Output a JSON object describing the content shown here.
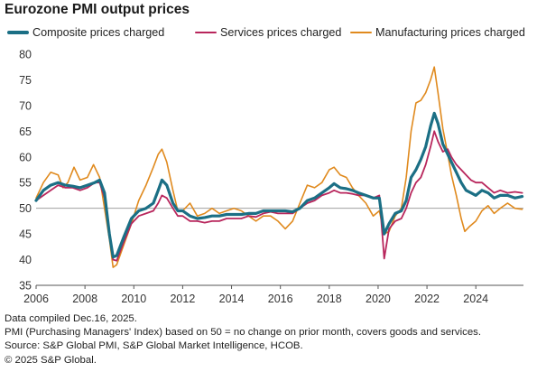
{
  "title": "Eurozone PMI output prices",
  "notes": [
    "Data compiled Dec.16, 2025.",
    "PMI (Purchasing Managers' Index) based on 50 = no change on prior month, covers goods and services.",
    "Source: S&P Global PMI, S&P Global Market Intelligence, HCOB.",
    "© 2025 S&P Global."
  ],
  "chart_data": {
    "type": "line",
    "title": "Eurozone PMI output prices",
    "xlabel": "",
    "ylabel": "",
    "ylim": [
      35,
      80
    ],
    "xlim": [
      2006,
      2025.95
    ],
    "yticks": [
      35,
      40,
      45,
      50,
      55,
      60,
      65,
      70,
      75,
      80
    ],
    "xticks": [
      2006,
      2008,
      2010,
      2012,
      2014,
      2016,
      2018,
      2020,
      2022,
      2024
    ],
    "reference_line": 50,
    "grid": false,
    "legend_position": "top",
    "series": [
      {
        "name": "Composite prices charged",
        "color": "#1b6f85",
        "points": [
          [
            2006.0,
            51.5
          ],
          [
            2006.3,
            53.5
          ],
          [
            2006.6,
            54.5
          ],
          [
            2006.9,
            55.0
          ],
          [
            2007.2,
            54.5
          ],
          [
            2007.5,
            54.3
          ],
          [
            2007.8,
            54.0
          ],
          [
            2008.1,
            54.5
          ],
          [
            2008.4,
            55.0
          ],
          [
            2008.6,
            55.5
          ],
          [
            2008.8,
            53.0
          ],
          [
            2009.0,
            45.0
          ],
          [
            2009.15,
            40.5
          ],
          [
            2009.3,
            40.8
          ],
          [
            2009.6,
            44.5
          ],
          [
            2009.9,
            48.0
          ],
          [
            2010.2,
            49.5
          ],
          [
            2010.5,
            50.0
          ],
          [
            2010.8,
            51.0
          ],
          [
            2011.0,
            53.5
          ],
          [
            2011.15,
            55.5
          ],
          [
            2011.35,
            54.5
          ],
          [
            2011.6,
            51.0
          ],
          [
            2011.8,
            49.5
          ],
          [
            2012.0,
            49.5
          ],
          [
            2012.3,
            48.5
          ],
          [
            2012.6,
            48.0
          ],
          [
            2012.9,
            48.2
          ],
          [
            2013.2,
            48.5
          ],
          [
            2013.5,
            48.5
          ],
          [
            2013.8,
            48.8
          ],
          [
            2014.1,
            48.8
          ],
          [
            2014.4,
            48.8
          ],
          [
            2014.7,
            49.0
          ],
          [
            2015.0,
            49.0
          ],
          [
            2015.3,
            49.5
          ],
          [
            2015.6,
            49.5
          ],
          [
            2015.9,
            49.5
          ],
          [
            2016.2,
            49.5
          ],
          [
            2016.5,
            49.3
          ],
          [
            2016.8,
            50.0
          ],
          [
            2017.1,
            51.5
          ],
          [
            2017.4,
            52.0
          ],
          [
            2017.7,
            53.0
          ],
          [
            2018.0,
            54.0
          ],
          [
            2018.2,
            54.8
          ],
          [
            2018.45,
            54.0
          ],
          [
            2018.7,
            53.8
          ],
          [
            2018.95,
            53.5
          ],
          [
            2019.2,
            53.0
          ],
          [
            2019.5,
            52.5
          ],
          [
            2019.8,
            52.0
          ],
          [
            2020.05,
            52.0
          ],
          [
            2020.25,
            45.0
          ],
          [
            2020.45,
            47.0
          ],
          [
            2020.7,
            49.0
          ],
          [
            2020.95,
            49.5
          ],
          [
            2021.15,
            51.5
          ],
          [
            2021.35,
            56.0
          ],
          [
            2021.55,
            57.5
          ],
          [
            2021.75,
            59.5
          ],
          [
            2021.95,
            62.0
          ],
          [
            2022.15,
            66.0
          ],
          [
            2022.3,
            68.5
          ],
          [
            2022.45,
            66.5
          ],
          [
            2022.65,
            62.5
          ],
          [
            2022.85,
            60.5
          ],
          [
            2023.0,
            59.0
          ],
          [
            2023.2,
            57.0
          ],
          [
            2023.4,
            55.0
          ],
          [
            2023.6,
            53.5
          ],
          [
            2023.8,
            53.0
          ],
          [
            2024.0,
            52.5
          ],
          [
            2024.25,
            53.5
          ],
          [
            2024.5,
            53.0
          ],
          [
            2024.75,
            52.0
          ],
          [
            2025.0,
            52.5
          ],
          [
            2025.3,
            52.5
          ],
          [
            2025.6,
            52.0
          ],
          [
            2025.9,
            52.3
          ]
        ]
      },
      {
        "name": "Services prices charged",
        "color": "#b8265c",
        "points": [
          [
            2006.0,
            51.5
          ],
          [
            2006.3,
            52.5
          ],
          [
            2006.6,
            53.5
          ],
          [
            2006.9,
            54.5
          ],
          [
            2007.2,
            54.0
          ],
          [
            2007.5,
            54.0
          ],
          [
            2007.8,
            53.5
          ],
          [
            2008.1,
            54.0
          ],
          [
            2008.4,
            55.0
          ],
          [
            2008.6,
            55.0
          ],
          [
            2008.8,
            52.0
          ],
          [
            2009.0,
            45.0
          ],
          [
            2009.15,
            40.0
          ],
          [
            2009.3,
            39.8
          ],
          [
            2009.6,
            43.5
          ],
          [
            2009.9,
            47.0
          ],
          [
            2010.2,
            48.5
          ],
          [
            2010.5,
            49.0
          ],
          [
            2010.8,
            49.5
          ],
          [
            2011.0,
            51.0
          ],
          [
            2011.15,
            52.5
          ],
          [
            2011.35,
            52.0
          ],
          [
            2011.6,
            50.0
          ],
          [
            2011.8,
            48.5
          ],
          [
            2012.0,
            48.5
          ],
          [
            2012.3,
            47.5
          ],
          [
            2012.6,
            47.5
          ],
          [
            2012.9,
            47.2
          ],
          [
            2013.2,
            47.5
          ],
          [
            2013.5,
            47.5
          ],
          [
            2013.8,
            48.0
          ],
          [
            2014.1,
            48.0
          ],
          [
            2014.4,
            48.0
          ],
          [
            2014.7,
            48.5
          ],
          [
            2015.0,
            48.3
          ],
          [
            2015.3,
            49.0
          ],
          [
            2015.6,
            49.3
          ],
          [
            2015.9,
            49.0
          ],
          [
            2016.2,
            49.0
          ],
          [
            2016.5,
            49.0
          ],
          [
            2016.8,
            50.0
          ],
          [
            2017.1,
            51.0
          ],
          [
            2017.4,
            51.5
          ],
          [
            2017.7,
            52.5
          ],
          [
            2018.0,
            53.0
          ],
          [
            2018.2,
            53.5
          ],
          [
            2018.45,
            53.0
          ],
          [
            2018.7,
            53.0
          ],
          [
            2018.95,
            52.8
          ],
          [
            2019.2,
            52.5
          ],
          [
            2019.5,
            52.5
          ],
          [
            2019.8,
            52.0
          ],
          [
            2020.05,
            52.5
          ],
          [
            2020.25,
            40.2
          ],
          [
            2020.45,
            46.0
          ],
          [
            2020.7,
            47.5
          ],
          [
            2020.95,
            48.0
          ],
          [
            2021.15,
            50.0
          ],
          [
            2021.35,
            53.0
          ],
          [
            2021.55,
            55.0
          ],
          [
            2021.75,
            56.0
          ],
          [
            2021.95,
            58.5
          ],
          [
            2022.15,
            62.0
          ],
          [
            2022.3,
            65.0
          ],
          [
            2022.45,
            63.0
          ],
          [
            2022.65,
            61.0
          ],
          [
            2022.85,
            61.5
          ],
          [
            2023.0,
            60.0
          ],
          [
            2023.2,
            58.5
          ],
          [
            2023.4,
            57.5
          ],
          [
            2023.6,
            56.5
          ],
          [
            2023.8,
            55.5
          ],
          [
            2024.0,
            55.0
          ],
          [
            2024.25,
            55.0
          ],
          [
            2024.5,
            54.0
          ],
          [
            2024.75,
            53.0
          ],
          [
            2025.0,
            53.5
          ],
          [
            2025.3,
            53.0
          ],
          [
            2025.6,
            53.2
          ],
          [
            2025.9,
            53.0
          ]
        ]
      },
      {
        "name": "Manufacturing prices charged",
        "color": "#e08a1e",
        "points": [
          [
            2006.0,
            52.0
          ],
          [
            2006.3,
            55.0
          ],
          [
            2006.6,
            57.0
          ],
          [
            2006.9,
            56.5
          ],
          [
            2007.1,
            54.0
          ],
          [
            2007.3,
            55.0
          ],
          [
            2007.55,
            58.0
          ],
          [
            2007.8,
            55.5
          ],
          [
            2008.1,
            56.0
          ],
          [
            2008.35,
            58.5
          ],
          [
            2008.6,
            56.0
          ],
          [
            2008.8,
            50.0
          ],
          [
            2009.0,
            44.0
          ],
          [
            2009.15,
            38.5
          ],
          [
            2009.3,
            39.0
          ],
          [
            2009.6,
            43.0
          ],
          [
            2009.9,
            47.0
          ],
          [
            2010.2,
            51.5
          ],
          [
            2010.5,
            54.5
          ],
          [
            2010.8,
            58.0
          ],
          [
            2011.0,
            60.5
          ],
          [
            2011.15,
            61.5
          ],
          [
            2011.35,
            59.0
          ],
          [
            2011.6,
            53.5
          ],
          [
            2011.8,
            49.5
          ],
          [
            2012.0,
            49.5
          ],
          [
            2012.3,
            51.0
          ],
          [
            2012.6,
            48.5
          ],
          [
            2012.9,
            49.0
          ],
          [
            2013.2,
            50.0
          ],
          [
            2013.5,
            49.0
          ],
          [
            2013.8,
            49.5
          ],
          [
            2014.1,
            50.0
          ],
          [
            2014.4,
            49.5
          ],
          [
            2014.7,
            48.5
          ],
          [
            2015.0,
            47.5
          ],
          [
            2015.3,
            48.5
          ],
          [
            2015.6,
            48.5
          ],
          [
            2015.9,
            47.5
          ],
          [
            2016.2,
            46.0
          ],
          [
            2016.5,
            47.5
          ],
          [
            2016.8,
            51.0
          ],
          [
            2017.1,
            54.5
          ],
          [
            2017.4,
            54.0
          ],
          [
            2017.7,
            55.0
          ],
          [
            2018.0,
            57.5
          ],
          [
            2018.2,
            58.0
          ],
          [
            2018.45,
            56.5
          ],
          [
            2018.7,
            56.0
          ],
          [
            2018.95,
            54.0
          ],
          [
            2019.2,
            52.5
          ],
          [
            2019.5,
            51.0
          ],
          [
            2019.8,
            48.5
          ],
          [
            2020.05,
            49.5
          ],
          [
            2020.25,
            45.0
          ],
          [
            2020.45,
            45.5
          ],
          [
            2020.7,
            48.5
          ],
          [
            2020.95,
            50.0
          ],
          [
            2021.15,
            56.0
          ],
          [
            2021.35,
            65.0
          ],
          [
            2021.55,
            70.5
          ],
          [
            2021.75,
            71.0
          ],
          [
            2021.95,
            72.5
          ],
          [
            2022.15,
            75.0
          ],
          [
            2022.3,
            77.5
          ],
          [
            2022.45,
            72.5
          ],
          [
            2022.65,
            65.5
          ],
          [
            2022.85,
            60.5
          ],
          [
            2023.0,
            56.5
          ],
          [
            2023.2,
            52.5
          ],
          [
            2023.4,
            48.0
          ],
          [
            2023.55,
            45.5
          ],
          [
            2023.75,
            46.5
          ],
          [
            2024.0,
            47.5
          ],
          [
            2024.25,
            49.5
          ],
          [
            2024.5,
            50.5
          ],
          [
            2024.75,
            49.0
          ],
          [
            2025.0,
            50.0
          ],
          [
            2025.3,
            51.0
          ],
          [
            2025.6,
            50.0
          ],
          [
            2025.9,
            49.8
          ]
        ]
      }
    ]
  }
}
